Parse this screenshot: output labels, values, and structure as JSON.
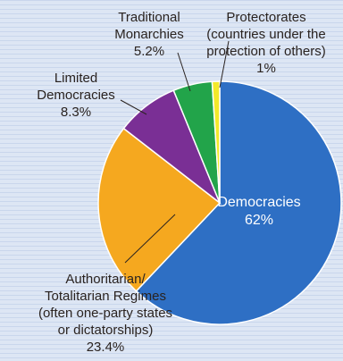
{
  "chart_data": {
    "type": "pie",
    "slices": [
      {
        "label_lines": [
          "Democracies",
          "62%"
        ],
        "value": 62,
        "color": "#2e6fc4"
      },
      {
        "label_lines": [
          "Authoritarian/",
          "Totalitarian Regimes",
          "(often one-party states",
          "or dictatorships)",
          "23.4%"
        ],
        "value": 23.4,
        "color": "#f5a81f"
      },
      {
        "label_lines": [
          "Limited",
          "Democracies",
          "8.3%"
        ],
        "value": 8.3,
        "color": "#7a2f95"
      },
      {
        "label_lines": [
          "Traditional",
          "Monarchies",
          "5.2%"
        ],
        "value": 5.2,
        "color": "#22a44a"
      },
      {
        "label_lines": [
          "Protectorates",
          "(countries under the",
          "protection of others)",
          "1%"
        ],
        "value": 1,
        "color": "#f3e92a"
      }
    ],
    "start_angle_deg": 0,
    "direction": "clockwise",
    "background": "#d4dff1",
    "slice_stroke": "#ffffff"
  }
}
